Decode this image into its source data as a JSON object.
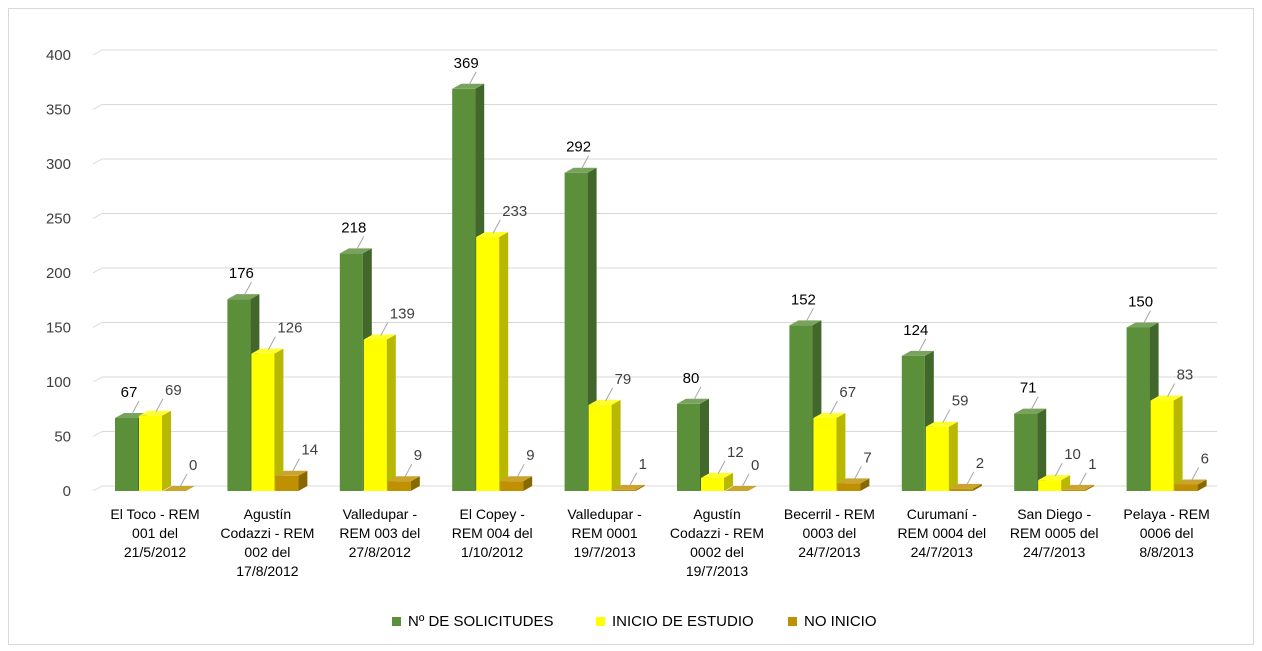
{
  "chart_data": {
    "type": "bar",
    "style": "3d-clustered-column",
    "categories": [
      [
        "El Toco - REM",
        "001 del",
        "21/5/2012"
      ],
      [
        "Agustín",
        "Codazzi - REM",
        "002 del",
        "17/8/2012"
      ],
      [
        "Valledupar -",
        "REM 003 del",
        "27/8/2012"
      ],
      [
        "El Copey -",
        "REM 004 del",
        "1/10/2012"
      ],
      [
        "Valledupar -",
        "REM 0001",
        "19/7/2013"
      ],
      [
        "Agustín",
        "Codazzi - REM",
        "0002 del",
        "19/7/2013"
      ],
      [
        "Becerril - REM",
        "0003 del",
        "24/7/2013"
      ],
      [
        "Curumaní -",
        "REM 0004 del",
        "24/7/2013"
      ],
      [
        "San Diego -",
        "REM 0005 del",
        "24/7/2013"
      ],
      [
        "Pelaya - REM",
        "0006 del",
        "8/8/2013"
      ]
    ],
    "series": [
      {
        "name": "Nº DE SOLICITUDES",
        "color": "#5B8F3A",
        "values": [
          67,
          176,
          218,
          369,
          292,
          80,
          152,
          124,
          71,
          150
        ]
      },
      {
        "name": "INICIO DE ESTUDIO",
        "color": "#FFFF00",
        "values": [
          69,
          126,
          139,
          233,
          79,
          12,
          67,
          59,
          10,
          83
        ]
      },
      {
        "name": "NO INICIO",
        "color": "#BF9000",
        "values": [
          0,
          14,
          9,
          9,
          1,
          0,
          7,
          2,
          1,
          6
        ]
      }
    ],
    "y_ticks": [
      "0",
      "50",
      "100",
      "150",
      "200",
      "250",
      "300",
      "350",
      "400"
    ],
    "ylim": [
      0,
      400
    ],
    "grid": true,
    "legend_position": "bottom"
  }
}
